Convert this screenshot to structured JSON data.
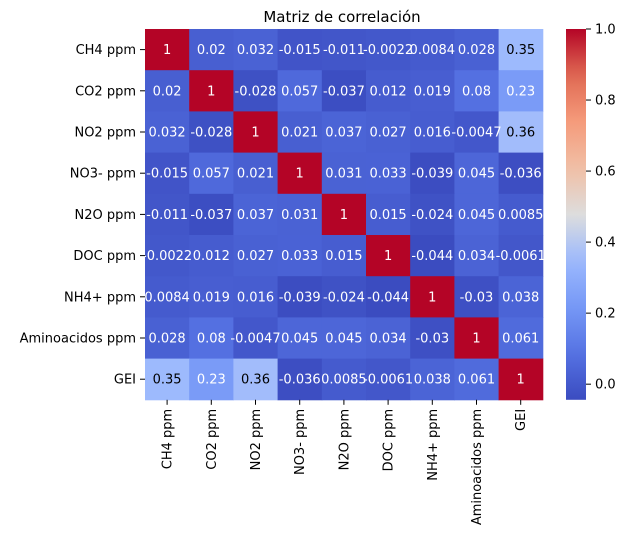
{
  "chart_data": {
    "type": "heatmap",
    "title": "Matriz de correlación",
    "xlabel": "",
    "ylabel": "",
    "rows": [
      "CH4 ppm",
      "CO2 ppm",
      "NO2 ppm",
      "NO3- ppm",
      "N2O ppm",
      "DOC ppm",
      "NH4+ ppm",
      "Aminoacidos ppm",
      "GEI"
    ],
    "columns": [
      "CH4 ppm",
      "CO2 ppm",
      "NO2 ppm",
      "NO3- ppm",
      "N2O ppm",
      "DOC ppm",
      "NH4+ ppm",
      "Aminoacidos ppm",
      "GEI"
    ],
    "values": [
      [
        1,
        0.02,
        0.032,
        -0.015,
        -0.011,
        -0.0022,
        0.0084,
        0.028,
        0.35
      ],
      [
        0.02,
        1,
        -0.028,
        0.057,
        -0.037,
        0.012,
        0.019,
        0.08,
        0.23
      ],
      [
        0.032,
        -0.028,
        1,
        0.021,
        0.037,
        0.027,
        0.016,
        -0.0047,
        0.36
      ],
      [
        -0.015,
        0.057,
        0.021,
        1,
        0.031,
        0.033,
        -0.039,
        0.045,
        -0.036
      ],
      [
        -0.011,
        -0.037,
        0.037,
        0.031,
        1,
        0.015,
        -0.024,
        0.045,
        0.0085
      ],
      [
        -0.0022,
        0.012,
        0.027,
        0.033,
        0.015,
        1,
        -0.044,
        0.034,
        -0.0061
      ],
      [
        0.0084,
        0.019,
        0.016,
        -0.039,
        -0.024,
        -0.044,
        1,
        -0.03,
        0.038
      ],
      [
        0.028,
        0.08,
        -0.0047,
        0.045,
        0.045,
        0.034,
        -0.03,
        1,
        0.061
      ],
      [
        0.35,
        0.23,
        0.36,
        -0.036,
        0.0085,
        -0.0061,
        0.038,
        0.061,
        1
      ]
    ],
    "annotations": [
      [
        "1",
        "0.02",
        "0.032",
        "-0.015",
        "-0.011",
        "-0.0022",
        "0.0084",
        "0.028",
        "0.35"
      ],
      [
        "0.02",
        "1",
        "-0.028",
        "0.057",
        "-0.037",
        "0.012",
        "0.019",
        "0.08",
        "0.23"
      ],
      [
        "0.032",
        "-0.028",
        "1",
        "0.021",
        "0.037",
        "0.027",
        "0.016",
        "-0.0047",
        "0.36"
      ],
      [
        "-0.015",
        "0.057",
        "0.021",
        "1",
        "0.031",
        "0.033",
        "-0.039",
        "0.045",
        "-0.036"
      ],
      [
        "-0.011",
        "-0.037",
        "0.037",
        "0.031",
        "1",
        "0.015",
        "-0.024",
        "0.045",
        "0.0085"
      ],
      [
        "-0.0022",
        "0.012",
        "0.027",
        "0.033",
        "0.015",
        "1",
        "-0.044",
        "0.034",
        "-0.0061"
      ],
      [
        "0.0084",
        "0.019",
        "0.016",
        "-0.039",
        "-0.024",
        "-0.044",
        "1",
        "-0.03",
        "0.038"
      ],
      [
        "0.028",
        "0.08",
        "-0.0047",
        "0.045",
        "0.045",
        "0.034",
        "-0.03",
        "1",
        "0.061"
      ],
      [
        "0.35",
        "0.23",
        "0.36",
        "-0.036",
        "0.0085",
        "-0.0061",
        "0.038",
        "0.061",
        "1"
      ]
    ],
    "colormap": "coolwarm",
    "vmin": -0.044,
    "vmax": 1.0,
    "colorbar_ticks": [
      0.0,
      0.2,
      0.4,
      0.6,
      0.8,
      1.0
    ],
    "colorbar_tick_labels": [
      "0.0",
      "0.2",
      "0.4",
      "0.6",
      "0.8",
      "1.0"
    ],
    "grid": false,
    "legend": "colorbar-right"
  }
}
